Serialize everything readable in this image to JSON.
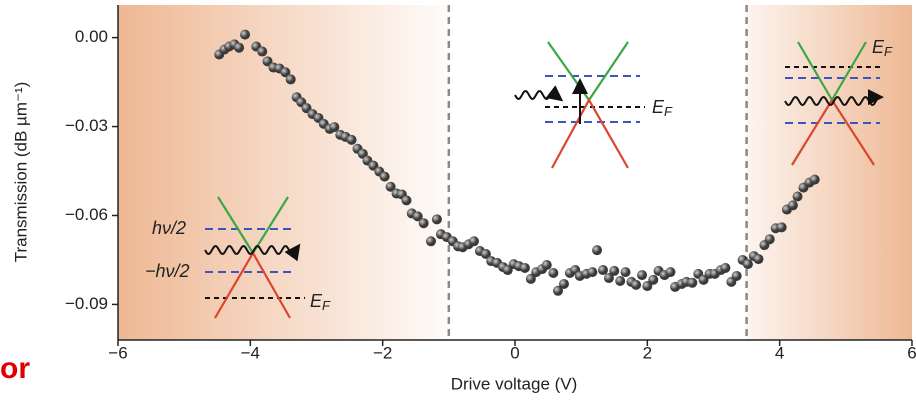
{
  "chart_data": {
    "type": "scatter",
    "xlabel": "Drive voltage (V)",
    "ylabel": "Transmission (dB µm⁻¹)",
    "x": [
      -4.47,
      -4.39,
      -4.32,
      -4.24,
      -4.17,
      -4.08,
      -3.91,
      -3.82,
      -3.74,
      -3.65,
      -3.56,
      -3.47,
      -3.39,
      -3.3,
      -3.23,
      -3.15,
      -3.06,
      -2.97,
      -2.89,
      -2.8,
      -2.73,
      -2.64,
      -2.56,
      -2.47,
      -2.38,
      -2.3,
      -2.23,
      -2.14,
      -2.05,
      -1.97,
      -1.88,
      -1.79,
      -1.71,
      -1.64,
      -1.56,
      -1.47,
      -1.38,
      -1.27,
      -1.18,
      -1.12,
      -1.03,
      -0.94,
      -0.86,
      -0.79,
      -0.7,
      -0.62,
      -0.53,
      -0.44,
      -0.36,
      -0.27,
      -0.18,
      -0.11,
      -0.02,
      0.06,
      0.15,
      0.24,
      0.32,
      0.41,
      0.48,
      0.58,
      0.65,
      0.74,
      0.83,
      0.91,
      0.98,
      1.08,
      1.17,
      1.24,
      1.33,
      1.42,
      1.5,
      1.59,
      1.67,
      1.76,
      1.83,
      1.92,
      2.0,
      2.09,
      2.17,
      2.26,
      2.35,
      2.42,
      2.52,
      2.59,
      2.68,
      2.77,
      2.85,
      2.94,
      3.02,
      3.11,
      3.18,
      3.27,
      3.35,
      3.44,
      3.52,
      3.61,
      3.68,
      3.77,
      3.85,
      3.94,
      4.03,
      4.11,
      4.2,
      4.27,
      4.36,
      4.45,
      4.53
    ],
    "values": [
      -0.0057,
      -0.004,
      -0.003,
      -0.0023,
      -0.0034,
      0.001,
      -0.003,
      -0.0047,
      -0.008,
      -0.0101,
      -0.0104,
      -0.0117,
      -0.0141,
      -0.0201,
      -0.0218,
      -0.0238,
      -0.0258,
      -0.0271,
      -0.0291,
      -0.0308,
      -0.0302,
      -0.0328,
      -0.0335,
      -0.0345,
      -0.0375,
      -0.0392,
      -0.0415,
      -0.0432,
      -0.0452,
      -0.0469,
      -0.0503,
      -0.0526,
      -0.0529,
      -0.0549,
      -0.0593,
      -0.0603,
      -0.0626,
      -0.0687,
      -0.0613,
      -0.0663,
      -0.0673,
      -0.0687,
      -0.0704,
      -0.0707,
      -0.0697,
      -0.0687,
      -0.072,
      -0.073,
      -0.0754,
      -0.076,
      -0.0774,
      -0.0784,
      -0.0764,
      -0.0771,
      -0.0777,
      -0.0814,
      -0.0791,
      -0.0781,
      -0.0767,
      -0.0794,
      -0.0854,
      -0.0831,
      -0.0794,
      -0.0784,
      -0.0804,
      -0.0797,
      -0.0791,
      -0.0717,
      -0.0784,
      -0.0811,
      -0.0787,
      -0.0821,
      -0.0791,
      -0.0824,
      -0.0834,
      -0.0801,
      -0.0838,
      -0.0817,
      -0.0787,
      -0.0801,
      -0.0791,
      -0.0841,
      -0.0831,
      -0.0824,
      -0.0827,
      -0.0797,
      -0.0817,
      -0.0797,
      -0.0797,
      -0.0784,
      -0.0777,
      -0.0824,
      -0.0804,
      -0.075,
      -0.0764,
      -0.0737,
      -0.0747,
      -0.07,
      -0.068,
      -0.0643,
      -0.064,
      -0.058,
      -0.0566,
      -0.0536,
      -0.0506,
      -0.0489,
      -0.0479
    ],
    "color": "#3a3a3a",
    "xlim": [
      -6,
      6
    ],
    "ylim": [
      -0.102,
      0.011
    ],
    "xticks": [
      {
        "value": -6,
        "label": "−6"
      },
      {
        "value": -4,
        "label": "−4"
      },
      {
        "value": -2,
        "label": "−2"
      },
      0,
      2,
      4,
      6
    ],
    "yticks": [
      {
        "value": 0,
        "label": "0.00"
      },
      {
        "value": -0.03,
        "label": "−0.03"
      },
      {
        "value": -0.06,
        "label": "−0.06"
      },
      {
        "value": -0.09,
        "label": "−0.09"
      }
    ],
    "vlines": [
      -1,
      3.5
    ],
    "shade_color": "#eeb894"
  },
  "insets": [
    {
      "upper": "hν/2",
      "lower": "−hν/2",
      "fermi": "E",
      "fermi_sub": "F"
    },
    {
      "fermi": "E",
      "fermi_sub": "F"
    },
    {
      "fermi": "E",
      "fermi_sub": "F"
    }
  ],
  "annotation": "or"
}
